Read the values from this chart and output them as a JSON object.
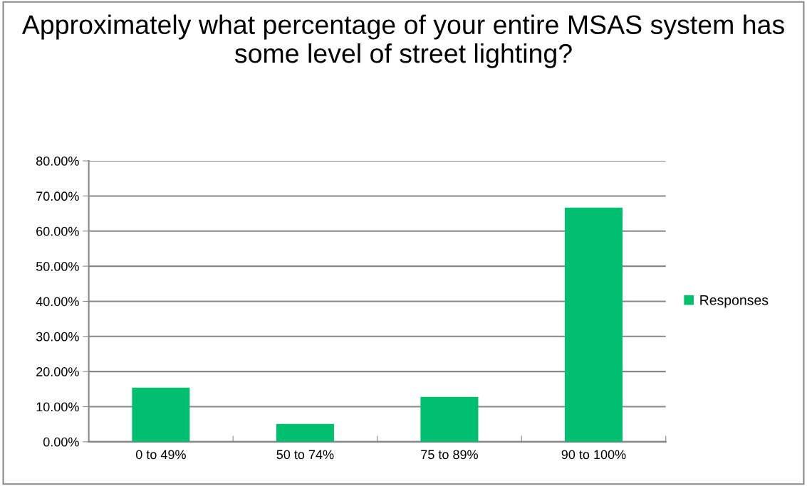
{
  "chart_data": {
    "type": "bar",
    "title": "Approximately what percentage of your entire MSAS system has some level of street lighting?",
    "categories": [
      "0 to 49%",
      "50 to 74%",
      "75 to 89%",
      "90 to 100%"
    ],
    "series": [
      {
        "name": "Responses",
        "color": "#00bf6f",
        "values": [
          15.4,
          5.1,
          12.8,
          66.7
        ]
      }
    ],
    "ylim": [
      0,
      80
    ],
    "yticks": [
      {
        "value": 0,
        "label": "0.00%"
      },
      {
        "value": 10,
        "label": "10.00%"
      },
      {
        "value": 20,
        "label": "20.00%"
      },
      {
        "value": 30,
        "label": "30.00%"
      },
      {
        "value": 40,
        "label": "40.00%"
      },
      {
        "value": 50,
        "label": "50.00%"
      },
      {
        "value": 60,
        "label": "60.00%"
      },
      {
        "value": 70,
        "label": "70.00%"
      },
      {
        "value": 80,
        "label": "80.00%"
      }
    ],
    "grid": "y",
    "legend": "right"
  }
}
